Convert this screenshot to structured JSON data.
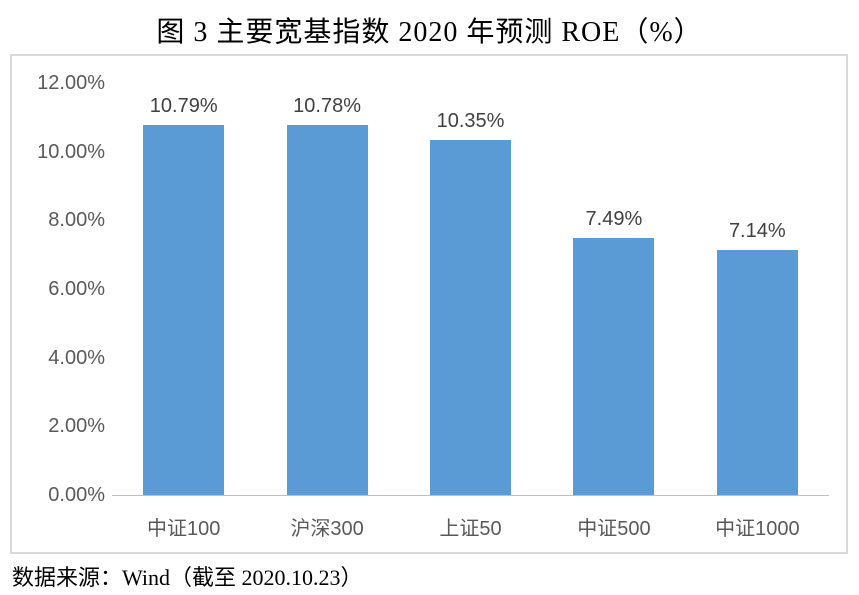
{
  "title": "图 3  主要宽基指数 2020 年预测 ROE（%）",
  "source_note": "数据来源：Wind（截至 2020.10.23）",
  "colors": {
    "bar": "#5b9bd5",
    "axis_text": "#595959",
    "data_label_text": "#404040",
    "frame_border": "#d9d9d9",
    "axis_line": "#bfbfbf"
  },
  "chart_data": {
    "type": "bar",
    "title": "图 3 主要宽基指数 2020 年预测 ROE（%）",
    "categories": [
      "中证100",
      "沪深300",
      "上证50",
      "中证500",
      "中证1000"
    ],
    "values": [
      10.79,
      10.78,
      10.35,
      7.49,
      7.14
    ],
    "data_labels": [
      "10.79%",
      "10.78%",
      "10.35%",
      "7.49%",
      "7.14%"
    ],
    "xlabel": "",
    "ylabel": "",
    "ylim": [
      0,
      12
    ],
    "y_tick_step": 2,
    "y_tick_labels": [
      "12.00%",
      "10.00%",
      "8.00%",
      "6.00%",
      "4.00%",
      "2.00%",
      "0.00%"
    ],
    "y_tick_values": [
      12,
      10,
      8,
      6,
      4,
      2,
      0
    ],
    "grid": false,
    "legend_position": "none",
    "source": "数据来源：Wind（截至 2020.10.23）"
  }
}
